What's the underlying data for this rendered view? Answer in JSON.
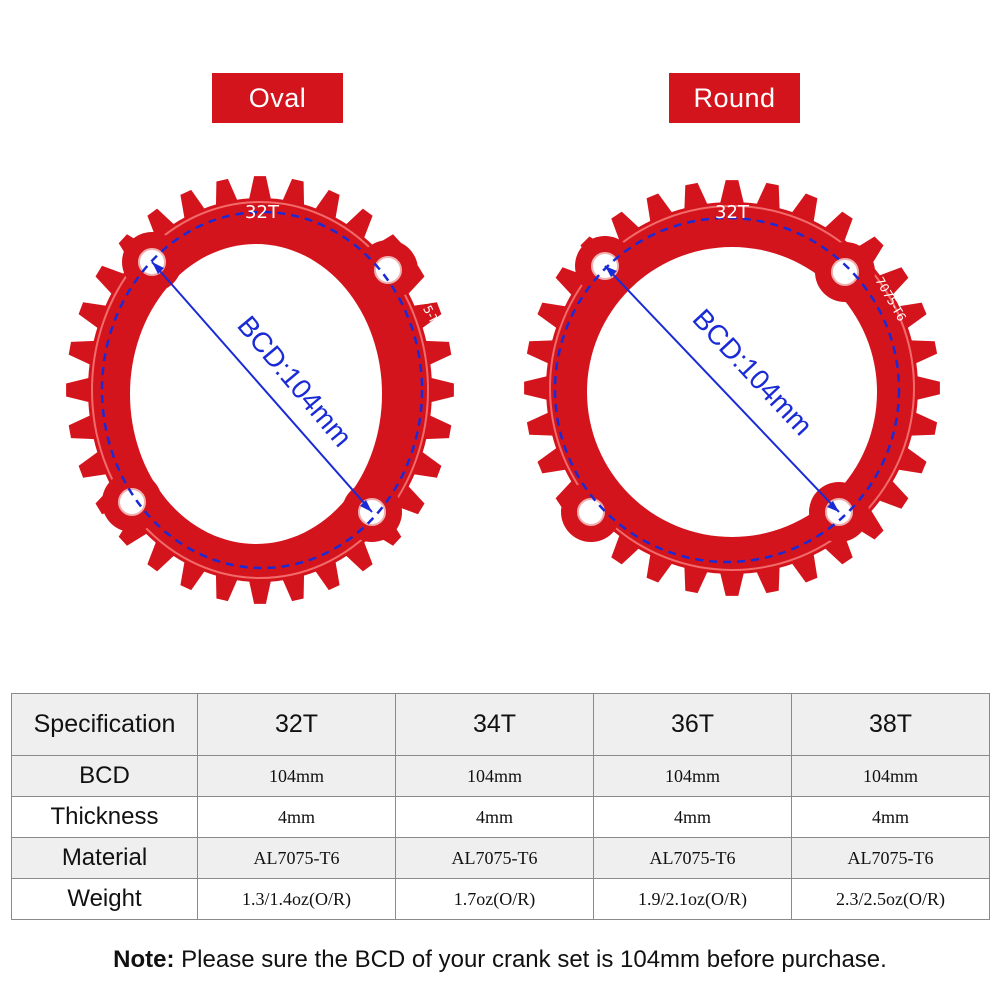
{
  "labels": {
    "oval": "Oval",
    "round": "Round"
  },
  "ring": {
    "teeth_text": "32T",
    "bcd_text": "BCD:104mm",
    "alloy_text": "7075-T6",
    "color": "#d4141c",
    "bcd_color": "#1a2bd6"
  },
  "table": {
    "header": [
      "Specification",
      "32T",
      "34T",
      "36T",
      "38T"
    ],
    "rows": [
      {
        "label": "BCD",
        "values": [
          "104mm",
          "104mm",
          "104mm",
          "104mm"
        ]
      },
      {
        "label": "Thickness",
        "values": [
          "4mm",
          "4mm",
          "4mm",
          "4mm"
        ]
      },
      {
        "label": "Material",
        "values": [
          "AL7075-T6",
          "AL7075-T6",
          "AL7075-T6",
          "AL7075-T6"
        ]
      },
      {
        "label": "Weight",
        "values": [
          "1.3/1.4oz(O/R)",
          "1.7oz(O/R)",
          "1.9/2.1oz(O/R)",
          "2.3/2.5oz(O/R)"
        ]
      }
    ]
  },
  "note": {
    "prefix": "Note:",
    "text": " Please sure the BCD of your crank set is 104mm before purchase."
  }
}
